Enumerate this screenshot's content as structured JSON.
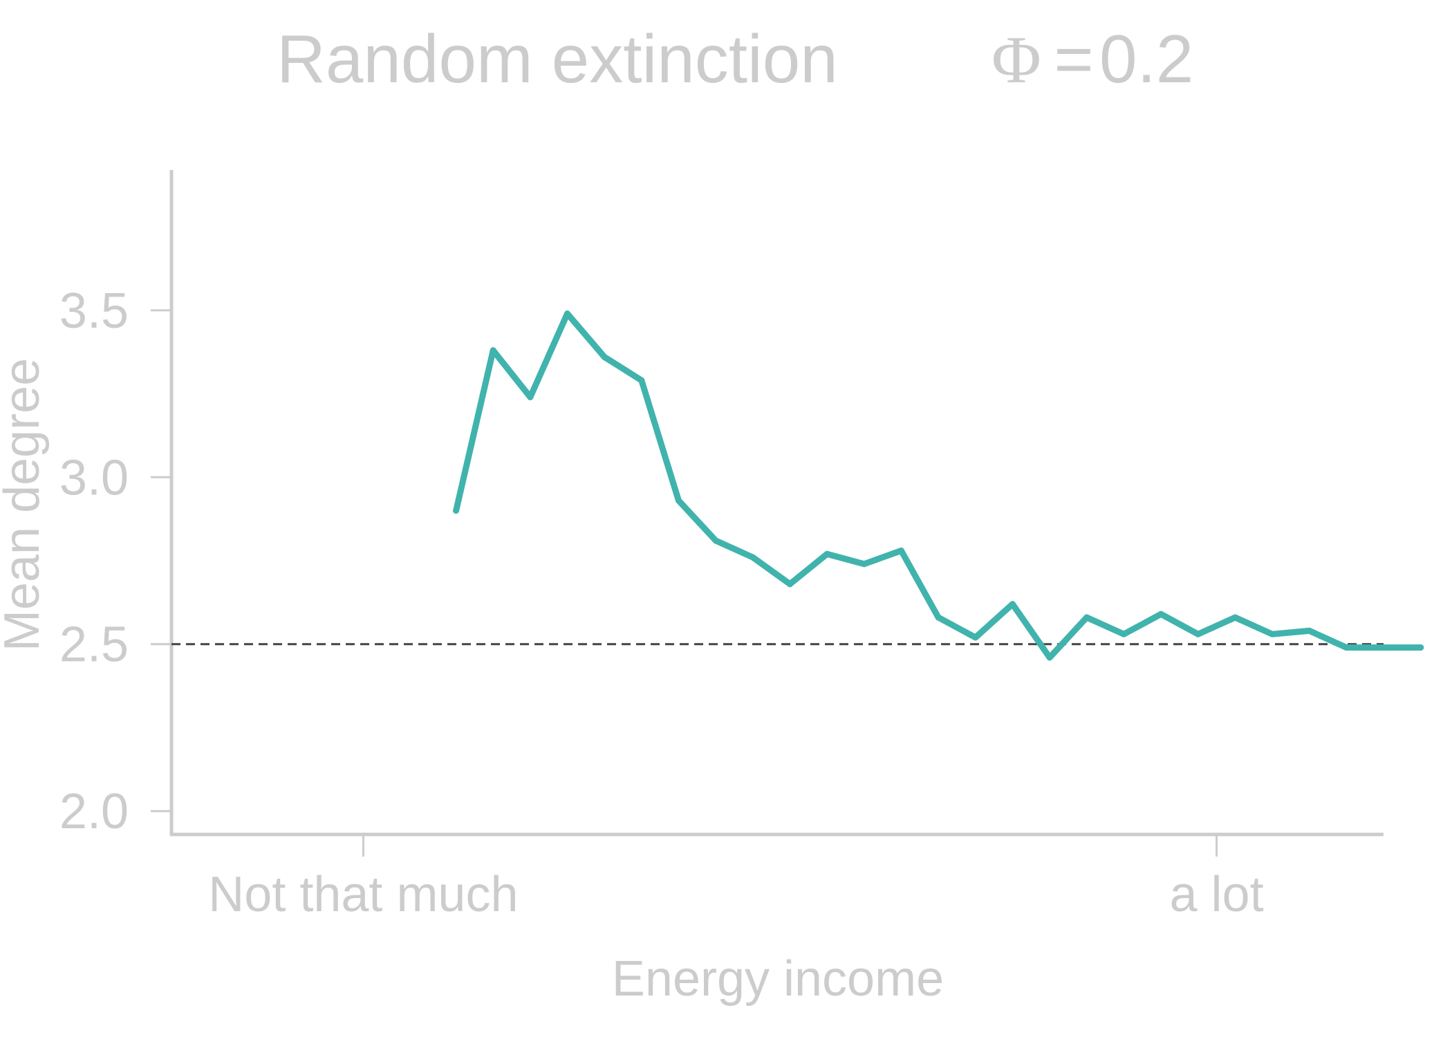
{
  "chart_data": {
    "type": "line",
    "title": "Random extinction",
    "subtitle": {
      "symbol": "Φ",
      "relation": "=",
      "value": "0.2"
    },
    "xlabel": "Energy income",
    "ylabel": "Mean degree",
    "x_tick_labels": [
      "Not that much",
      "a lot"
    ],
    "x_tick_positions": [
      4.5,
      27.5
    ],
    "y_ticks": [
      2.0,
      2.5,
      3.0,
      3.5
    ],
    "y_tick_labels": [
      "2.0",
      "2.5",
      "3.0",
      "3.5"
    ],
    "xlim": [
      -0.67,
      32.0
    ],
    "ylim": [
      1.93,
      3.92
    ],
    "reference_line": {
      "y": 2.5,
      "style": "dashed",
      "color": "#444444"
    },
    "series": [
      {
        "color": "#40b3ad",
        "x": [
          7,
          8,
          9,
          10,
          11,
          12,
          13,
          14,
          15,
          16,
          17,
          18,
          19,
          20,
          21,
          22,
          23,
          24,
          25,
          26,
          27,
          28,
          29,
          30,
          31,
          32,
          33
        ],
        "y": [
          2.9,
          3.38,
          3.24,
          3.49,
          3.36,
          3.29,
          2.93,
          2.81,
          2.76,
          2.68,
          2.77,
          2.74,
          2.78,
          2.58,
          2.52,
          2.62,
          2.46,
          2.58,
          2.53,
          2.59,
          2.53,
          2.58,
          2.53,
          2.54,
          2.49,
          2.49,
          2.49
        ]
      }
    ],
    "grid": false,
    "legend": "none",
    "colors": {
      "text": "#cccccc",
      "axis": "#cccccc",
      "line": "#40b3ad",
      "reference": "#444444"
    }
  }
}
